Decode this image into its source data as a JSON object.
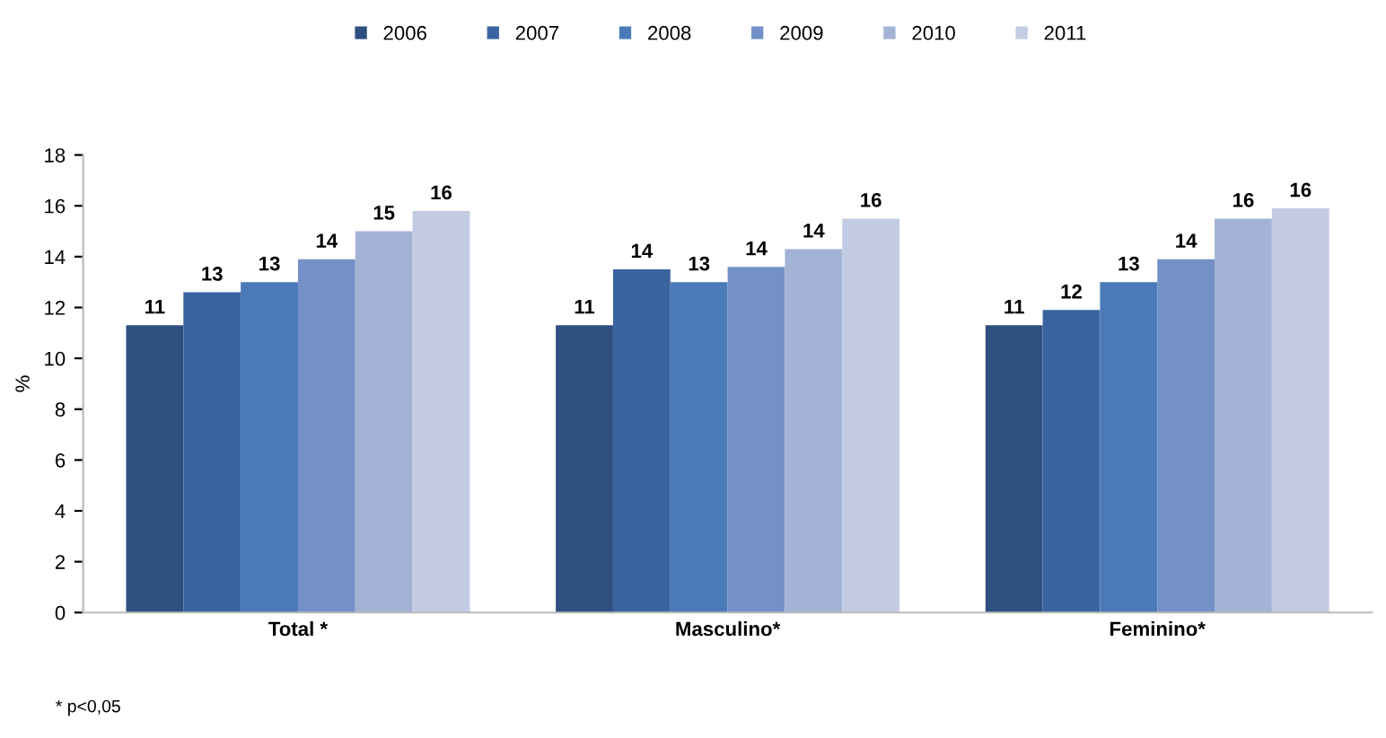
{
  "chart_data": {
    "type": "bar",
    "categories": [
      "Total *",
      "Masculino*",
      "Feminino*"
    ],
    "ylabel": "%",
    "ylim": [
      0,
      18
    ],
    "yticks": [
      0,
      2,
      4,
      6,
      8,
      10,
      12,
      14,
      16,
      18
    ],
    "grid": false,
    "legend": "top",
    "series": [
      {
        "name": "2006",
        "color": "#2f4f80",
        "values": [
          11.3,
          11.3,
          11.3
        ],
        "value_labels": [
          "11",
          "11",
          "11"
        ]
      },
      {
        "name": "2007",
        "color": "#3a64a0",
        "values": [
          12.6,
          13.5,
          11.9
        ],
        "value_labels": [
          "13",
          "14",
          "12"
        ]
      },
      {
        "name": "2008",
        "color": "#4a7ab8",
        "values": [
          13.0,
          13.0,
          13.0
        ],
        "value_labels": [
          "13",
          "13",
          "13"
        ]
      },
      {
        "name": "2009",
        "color": "#7391c6",
        "values": [
          13.9,
          13.6,
          13.9
        ],
        "value_labels": [
          "14",
          "14",
          "14"
        ]
      },
      {
        "name": "2010",
        "color": "#a3b3d6",
        "values": [
          15.0,
          14.3,
          15.5
        ],
        "value_labels": [
          "15",
          "14",
          "16"
        ]
      },
      {
        "name": "2011",
        "color": "#c3cce3",
        "values": [
          15.8,
          15.5,
          15.9
        ],
        "value_labels": [
          "16",
          "16",
          "16"
        ]
      }
    ],
    "annotations": [
      "* p<0,05"
    ]
  }
}
